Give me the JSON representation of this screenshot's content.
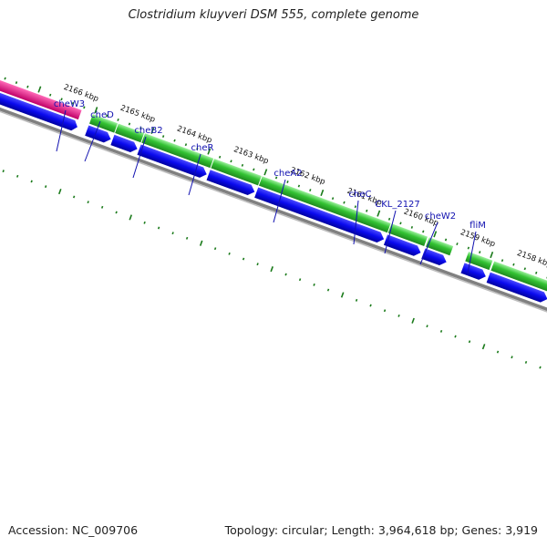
{
  "header": {
    "title": "Clostridium kluyveri DSM 555, complete genome"
  },
  "footer": {
    "accession": "Accession: NC_009706",
    "summary": "Topology: circular; Length: 3,964,618 bp; Genes: 3,919"
  },
  "scale": {
    "ticks": [
      {
        "kbp": 2166,
        "label": "2166 kbp"
      },
      {
        "kbp": 2165,
        "label": "2165 kbp"
      },
      {
        "kbp": 2164,
        "label": "2164 kbp"
      },
      {
        "kbp": 2163,
        "label": "2163 kbp"
      },
      {
        "kbp": 2162,
        "label": "2162 kbp"
      },
      {
        "kbp": 2161,
        "label": "2161 kbp"
      },
      {
        "kbp": 2160,
        "label": "2160 kbp"
      },
      {
        "kbp": 2159,
        "label": "2159 kbp"
      },
      {
        "kbp": 2158,
        "label": "2158 kbp"
      }
    ]
  },
  "genes": [
    {
      "name": "cheW3"
    },
    {
      "name": "cheD"
    },
    {
      "name": "cheB2"
    },
    {
      "name": "cheR"
    },
    {
      "name": "cheA2"
    },
    {
      "name": "cheC"
    },
    {
      "name": "CKL_2127"
    },
    {
      "name": "cheW2"
    },
    {
      "name": "fliM"
    }
  ],
  "colors": {
    "gene_green": "#33c233",
    "gene_green_dark": "#1e8a1e",
    "cds_blue": "#0a0aee",
    "rna_pink": "#ee1088",
    "backbone": "#808080",
    "tick": "#1a7a1a",
    "label": "#1010b0"
  }
}
